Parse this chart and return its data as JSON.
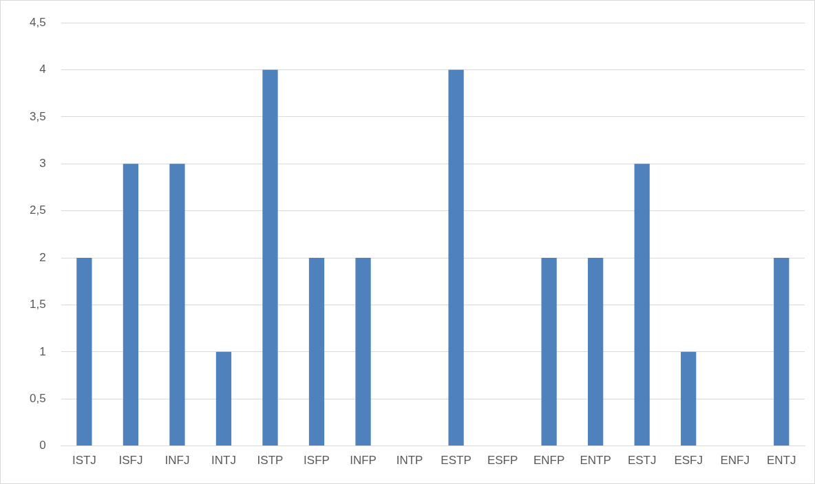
{
  "chart_data": {
    "type": "bar",
    "categories": [
      "ISTJ",
      "ISFJ",
      "INFJ",
      "INTJ",
      "ISTP",
      "ISFP",
      "INFP",
      "INTP",
      "ESTP",
      "ESFP",
      "ENFP",
      "ENTP",
      "ESTJ",
      "ESFJ",
      "ENFJ",
      "ENTJ"
    ],
    "values": [
      2,
      3,
      3,
      1,
      4,
      2,
      2,
      0,
      4,
      0,
      2,
      2,
      3,
      1,
      0,
      2
    ],
    "color": "#4f81bd",
    "ylim": [
      0,
      4.5
    ],
    "yticks": [
      0,
      {
        "value": 0.5,
        "label": "0,5"
      },
      1,
      {
        "value": 1.5,
        "label": "1,5"
      },
      2,
      {
        "value": 2.5,
        "label": "2,5"
      },
      3,
      {
        "value": 3.5,
        "label": "3,5"
      },
      4,
      {
        "value": 4.5,
        "label": "4,5"
      }
    ],
    "grid": "y"
  }
}
